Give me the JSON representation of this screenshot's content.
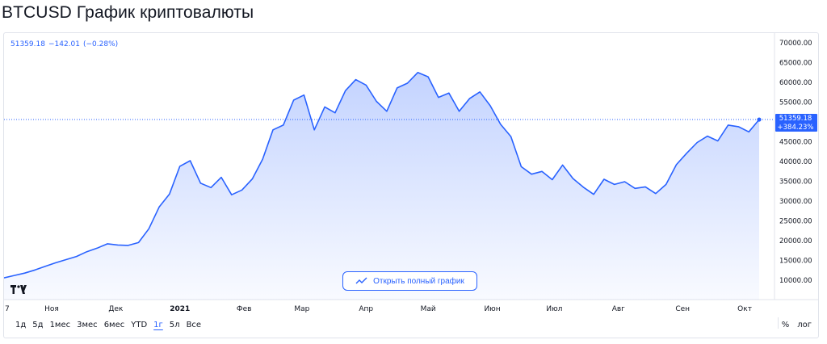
{
  "page": {
    "title": "BTCUSD График криптовалюты"
  },
  "legend": {
    "price": "51359.18",
    "change": "−142.01",
    "change_pct": "(−0.28%)"
  },
  "last_badge": {
    "price": "51359.18",
    "change_pct": "+384.23%"
  },
  "open_button": {
    "label": "Открыть полный график"
  },
  "ranges": [
    "1д",
    "5д",
    "1мес",
    "3мес",
    "6мес",
    "YTD",
    "1г",
    "5л",
    "Все"
  ],
  "active_range": "1г",
  "scale_buttons": {
    "percent": "%",
    "log": "лог"
  },
  "colors": {
    "line": "#2962ff",
    "area_top": "#2962ff",
    "text": "#131722",
    "axis_text": "#131722",
    "border": "#e0e3eb"
  },
  "chart_data": {
    "type": "area",
    "y_ticks": [
      "70000.00",
      "65000.00",
      "60000.00",
      "55000.00",
      "50000.00",
      "45000.00",
      "40000.00",
      "35000.00",
      "30000.00",
      "25000.00",
      "20000.00",
      "15000.00",
      "10000.00"
    ],
    "x_ticks": [
      "7",
      "Ноя",
      "Дек",
      "2021",
      "Фев",
      "Мар",
      "Апр",
      "Май",
      "Июн",
      "Июл",
      "Авг",
      "Сен",
      "Окт"
    ],
    "ylim": [
      5000,
      73000
    ],
    "x": [
      0,
      5,
      10,
      15,
      20,
      25,
      30,
      35,
      40,
      45,
      50,
      55,
      60,
      65,
      70,
      75,
      80,
      85,
      90,
      95,
      100,
      105,
      110,
      115,
      120,
      125,
      130,
      135,
      140,
      145,
      150,
      155,
      160,
      165,
      170,
      175,
      180,
      185,
      190,
      195,
      200,
      205,
      210,
      215,
      220,
      225,
      230,
      235,
      240,
      245,
      250,
      255,
      260,
      265,
      270,
      275,
      280,
      285,
      290,
      295,
      300,
      305,
      310,
      315,
      320,
      325,
      330,
      335,
      340,
      345,
      350,
      355,
      360,
      365
    ],
    "y": [
      10600,
      11200,
      11800,
      12600,
      13500,
      14400,
      15200,
      16000,
      17200,
      18100,
      19200,
      18900,
      18800,
      19500,
      23000,
      28500,
      31800,
      38800,
      40200,
      34500,
      33400,
      36000,
      31600,
      32800,
      35600,
      40600,
      48000,
      49200,
      55500,
      56800,
      48000,
      53800,
      52300,
      57900,
      60700,
      59300,
      55200,
      52700,
      58600,
      59800,
      62500,
      61400,
      56200,
      57300,
      52700,
      55900,
      57600,
      54100,
      49400,
      46300,
      38700,
      36800,
      37500,
      35400,
      39100,
      35700,
      33500,
      31700,
      35500,
      34200,
      34900,
      33200,
      33600,
      31900,
      34200,
      39200,
      42100,
      44800,
      46400,
      45200,
      49200,
      48800,
      47500,
      50600
    ]
  }
}
